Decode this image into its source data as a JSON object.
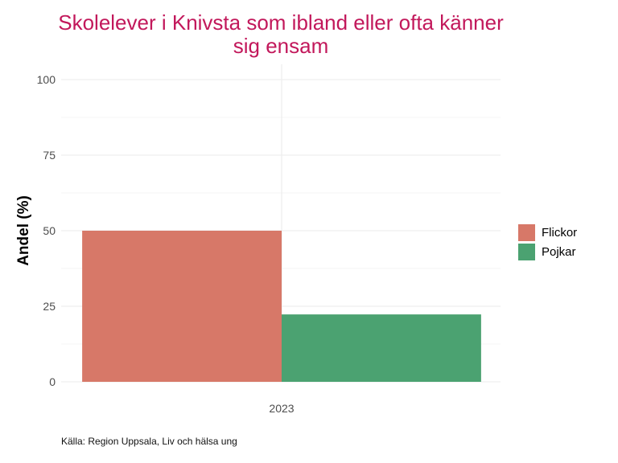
{
  "chart_data": {
    "type": "bar",
    "title_lines": [
      "Skolelever i Knivsta som ibland eller ofta känner",
      "sig ensam"
    ],
    "ylabel": "Andel (%)",
    "xlabel": "",
    "categories": [
      "2023"
    ],
    "series": [
      {
        "name": "Flickor",
        "values": [
          50
        ],
        "color": "#d77868"
      },
      {
        "name": "Pojkar",
        "values": [
          22.3
        ],
        "color": "#4ba271"
      }
    ],
    "ylim": [
      0,
      100
    ],
    "yticks": [
      0,
      25,
      50,
      75,
      100
    ],
    "grid": true,
    "legend": "right"
  },
  "caption": "Källa: Region Uppsala, Liv och hälsa ung"
}
